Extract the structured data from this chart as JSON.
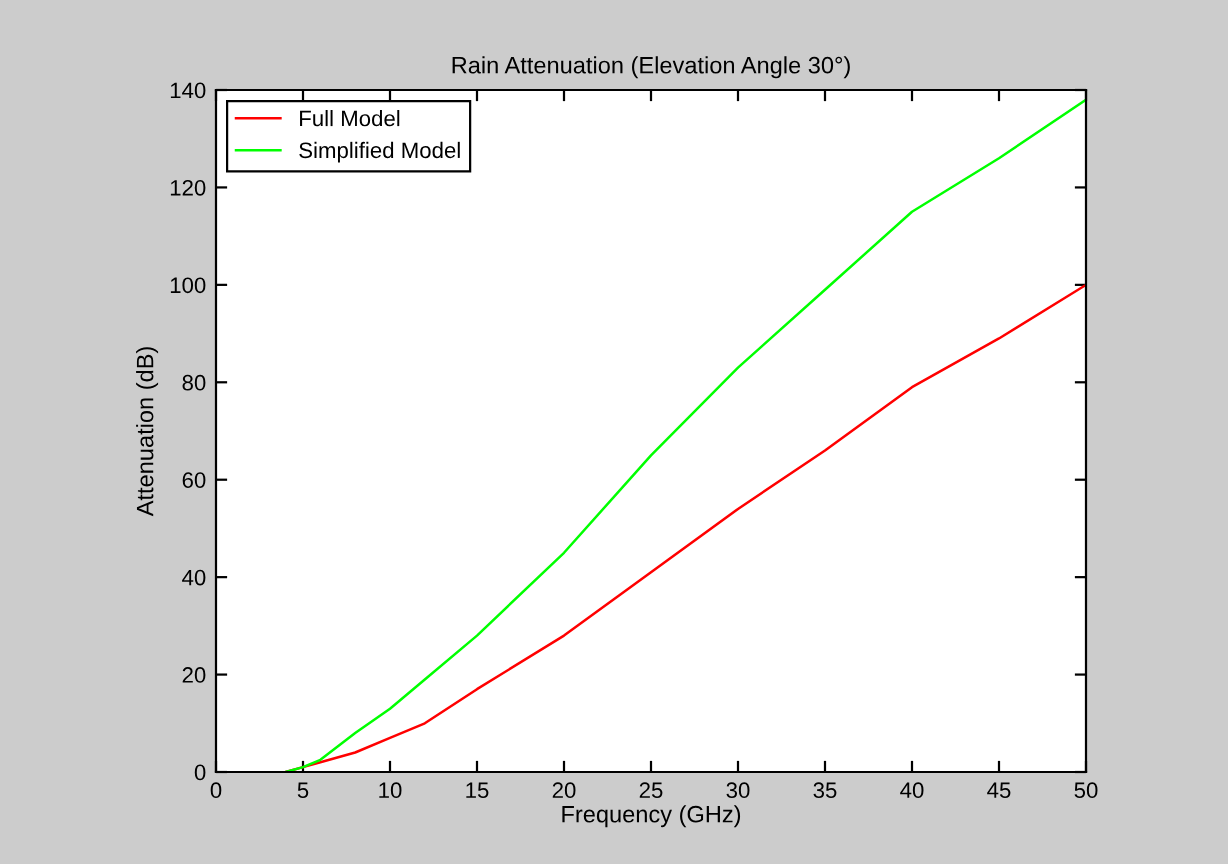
{
  "chart_data": {
    "type": "line",
    "title": "Rain Attenuation (Elevation Angle 30°)",
    "xlabel": "Frequency (GHz)",
    "ylabel": "Attenuation (dB)",
    "x": [
      4,
      5,
      6,
      8,
      10,
      12,
      15,
      20,
      25,
      30,
      35,
      40,
      45,
      50
    ],
    "series": [
      {
        "name": "Full Model",
        "color": "#ff0000",
        "values": [
          0,
          1,
          2,
          4,
          7,
          10,
          17,
          28,
          41,
          54,
          66,
          79,
          89,
          100
        ]
      },
      {
        "name": "Simplified Model",
        "color": "#00ff00",
        "values": [
          0,
          1,
          2.5,
          8,
          13,
          19,
          28,
          45,
          65,
          83,
          99,
          115,
          126,
          138
        ]
      }
    ],
    "xlim": [
      0,
      50
    ],
    "ylim": [
      0,
      140
    ],
    "xticks": [
      0,
      5,
      10,
      15,
      20,
      25,
      30,
      35,
      40,
      45,
      50
    ],
    "yticks": [
      0,
      20,
      40,
      60,
      80,
      100,
      120,
      140
    ],
    "grid": false,
    "legend": "top left",
    "marker": "none",
    "line_style": "solid"
  }
}
